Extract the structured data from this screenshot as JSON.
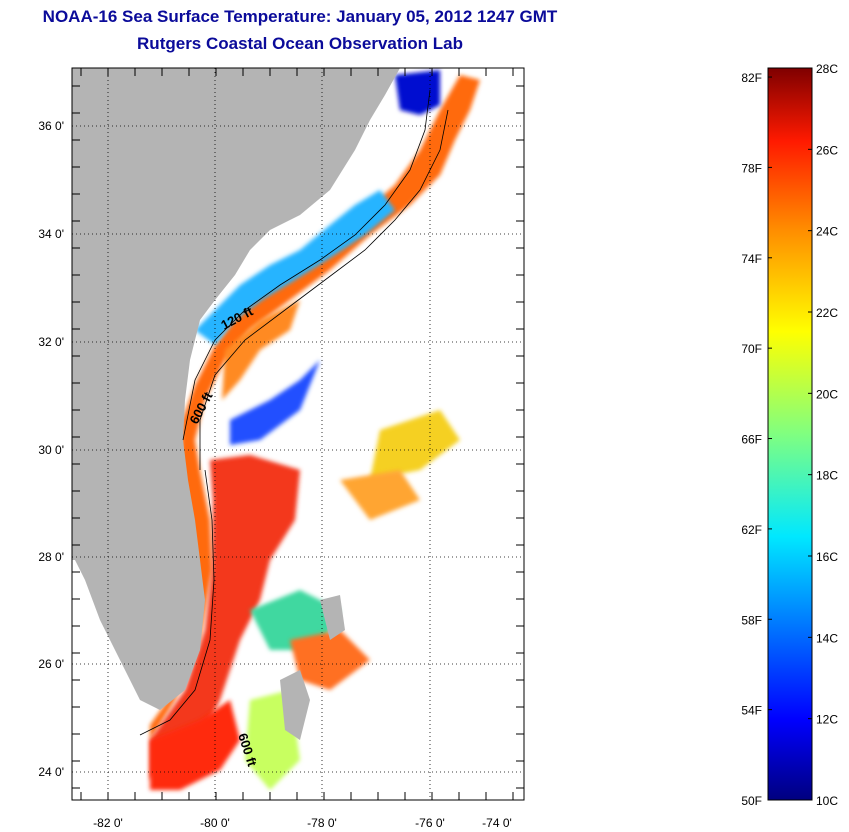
{
  "header": {
    "title": "NOAA-16 Sea Surface Temperature:  January 05, 2012 1247 GMT",
    "subtitle": "Rutgers Coastal Ocean Observation Lab"
  },
  "map": {
    "lon_ticks": [
      "-82 0'",
      "-80 0'",
      "-78 0'",
      "-76 0'",
      "-74 0'"
    ],
    "lat_ticks": [
      "36 0'",
      "34 0'",
      "32 0'",
      "30 0'",
      "28 0'",
      "26 0'",
      "24 0'"
    ],
    "contour_labels": [
      "120 ft",
      "600 ft",
      "600 ft"
    ],
    "land_color": "#b4b4b4",
    "no_data_color": "#ffffff"
  },
  "colorbar": {
    "fahrenheit_labels": [
      "82F",
      "78F",
      "74F",
      "70F",
      "66F",
      "62F",
      "58F",
      "54F",
      "50F"
    ],
    "celsius_labels": [
      "28C",
      "26C",
      "24C",
      "22C",
      "20C",
      "18C",
      "16C",
      "14C",
      "12C",
      "10C"
    ],
    "range_c": [
      10,
      28
    ]
  }
}
